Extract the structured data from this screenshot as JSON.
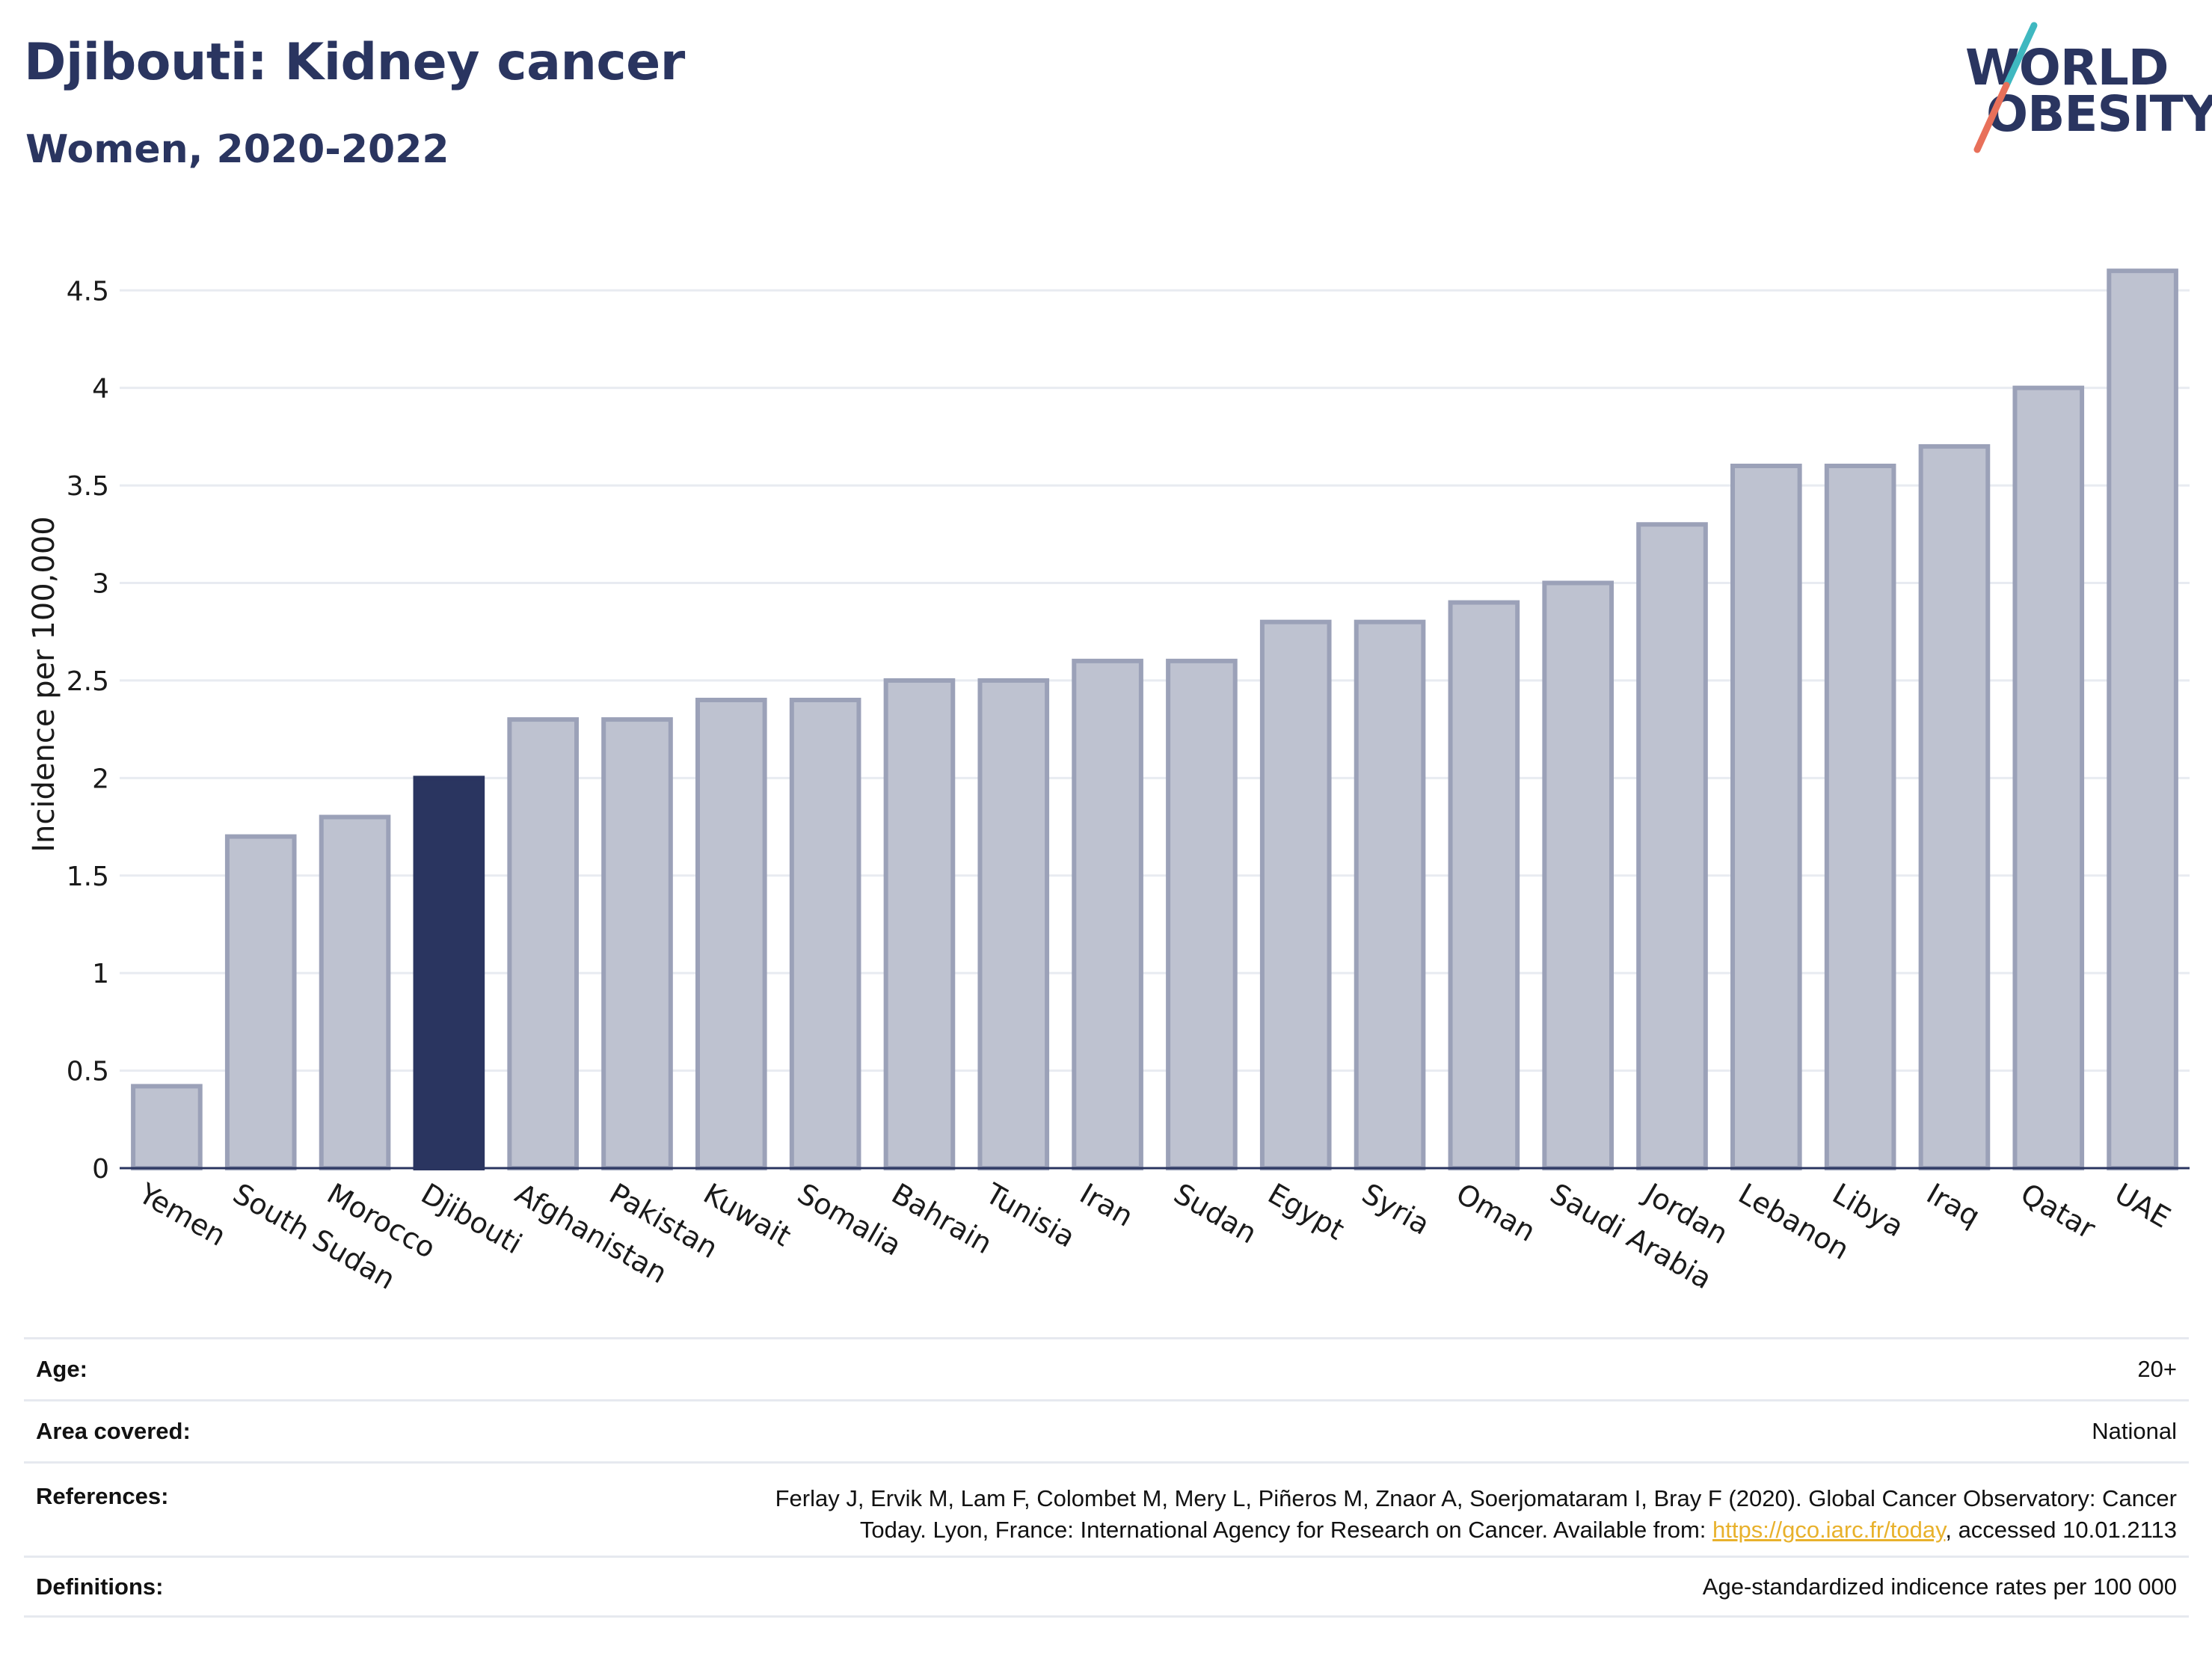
{
  "header": {
    "title": "Djibouti: Kidney cancer",
    "subtitle": "Women, 2020-2022"
  },
  "logo": {
    "line1": "WORLD",
    "line2": "OBESITY",
    "colors": {
      "text": "#2a3560",
      "slash_top": "#3fb8c0",
      "slash_bottom": "#e8705a"
    }
  },
  "chart_data": {
    "type": "bar",
    "title": "Djibouti: Kidney cancer",
    "subtitle": "Women, 2020-2022",
    "ylabel": "Incidence per 100,000",
    "xlabel": "",
    "ylim": [
      0,
      4.8
    ],
    "yticks": [
      0,
      0.5,
      1,
      1.5,
      2,
      2.5,
      3,
      3.5,
      4,
      4.5
    ],
    "ytick_labels": [
      "0",
      "0.5",
      "1",
      "1.5",
      "2",
      "2.5",
      "3",
      "3.5",
      "4",
      "4.5"
    ],
    "grid": true,
    "categories": [
      "Yemen",
      "South Sudan",
      "Morocco",
      "Djibouti",
      "Afghanistan",
      "Pakistan",
      "Kuwait",
      "Somalia",
      "Bahrain",
      "Tunisia",
      "Iran",
      "Sudan",
      "Egypt",
      "Syria",
      "Oman",
      "Saudi Arabia",
      "Jordan",
      "Lebanon",
      "Libya",
      "Iraq",
      "Qatar",
      "UAE"
    ],
    "values": [
      0.42,
      1.7,
      1.8,
      2.0,
      2.3,
      2.3,
      2.4,
      2.4,
      2.5,
      2.5,
      2.6,
      2.6,
      2.8,
      2.8,
      2.9,
      3.0,
      3.3,
      3.6,
      3.6,
      3.7,
      4.0,
      4.6
    ],
    "highlight": "Djibouti",
    "colors": {
      "bar": "#bec2d0",
      "bar_edge": "#9ba1b8",
      "highlight": "#2a3560",
      "grid": "#e8ebf1",
      "axis": "#2a3560"
    }
  },
  "footer": {
    "rows": [
      {
        "label": "Age:",
        "value": "20+"
      },
      {
        "label": "Area covered:",
        "value": "National"
      },
      {
        "label": "References:",
        "value_line1": "Ferlay J, Ervik M, Lam F, Colombet M, Mery L, Piñeros M, Znaor A, Soerjomataram I, Bray F (2020). Global Cancer Observatory: Cancer",
        "value_line2_before": "Today. Lyon, France: International Agency for Research on Cancer. Available from: ",
        "link": "https://gco.iarc.fr/today",
        "value_line2_after": ", accessed 10.01.2113"
      },
      {
        "label": "Definitions:",
        "value": "Age-standardized indicence rates per 100 000"
      }
    ]
  }
}
